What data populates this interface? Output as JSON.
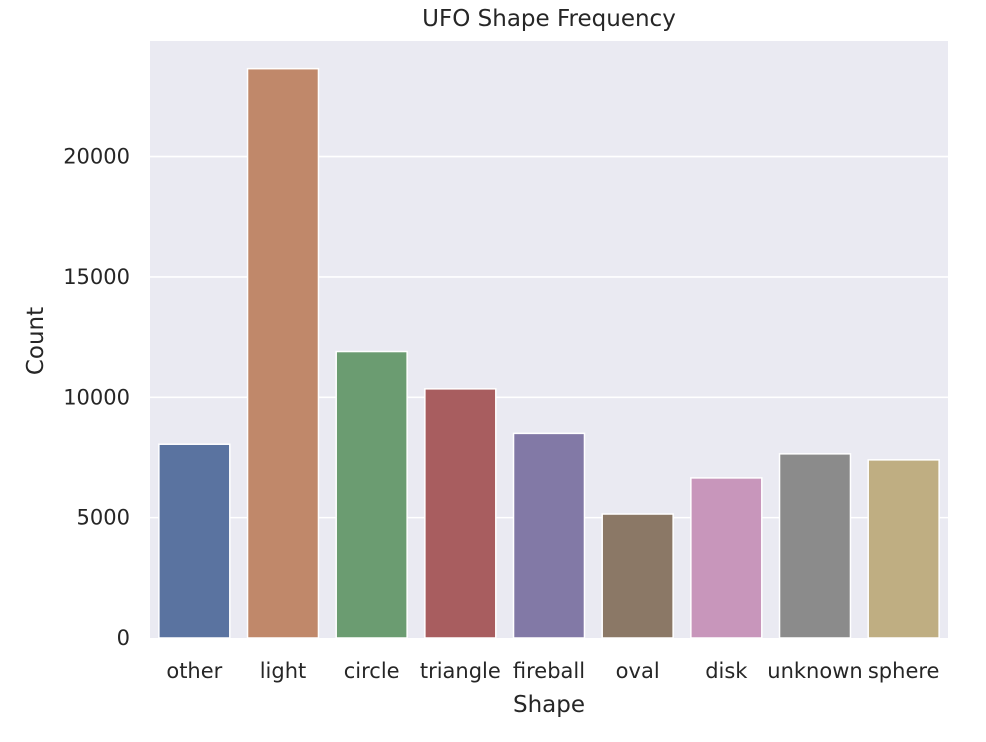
{
  "chart_data": {
    "type": "bar",
    "title": "UFO Shape Frequency",
    "xlabel": "Shape",
    "ylabel": "Count",
    "categories": [
      "other",
      "light",
      "circle",
      "triangle",
      "fireball",
      "oval",
      "disk",
      "unknown",
      "sphere"
    ],
    "values": [
      8050,
      23650,
      11900,
      10350,
      8500,
      5150,
      6650,
      7650,
      7400
    ],
    "ylim": [
      0,
      24800
    ],
    "yticks": [
      0,
      5000,
      10000,
      15000,
      20000
    ],
    "ytick_labels": [
      "0",
      "5000",
      "10000",
      "15000",
      "20000"
    ],
    "grid": true,
    "grid_axis": "y",
    "legend": "none",
    "style": {
      "background": "#eaeaf2",
      "grid_color": "#ffffff"
    },
    "colors": [
      "#5a73a0",
      "#c0886a",
      "#6b9c71",
      "#a85d5f",
      "#8279a6",
      "#8b7866",
      "#c896bb",
      "#8b8b8b",
      "#bfae82"
    ]
  }
}
